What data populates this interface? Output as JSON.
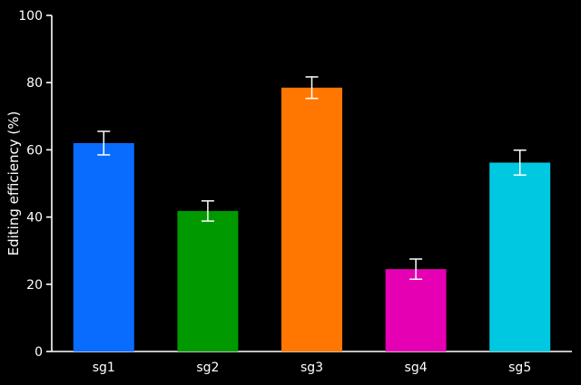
{
  "chart_data": {
    "type": "bar",
    "title": "",
    "xlabel": "",
    "ylabel": "Editing efficiency (%)",
    "ylim": [
      0,
      100
    ],
    "yticks": [
      0,
      20,
      40,
      60,
      80,
      100
    ],
    "categories": [
      "sg1",
      "sg2",
      "sg3",
      "sg4",
      "sg5"
    ],
    "values": [
      62,
      41.8,
      78.5,
      24.5,
      56.2
    ],
    "error": [
      3.5,
      3,
      3.2,
      3,
      3.7
    ],
    "colors": [
      "#0a6cff",
      "#009900",
      "#ff7700",
      "#e600b3",
      "#00c8e0"
    ],
    "grid": false,
    "legend": "none"
  },
  "style": {
    "background": "#000000",
    "axis_color": "#ffffff",
    "errorbar_color": "#ffffff"
  }
}
